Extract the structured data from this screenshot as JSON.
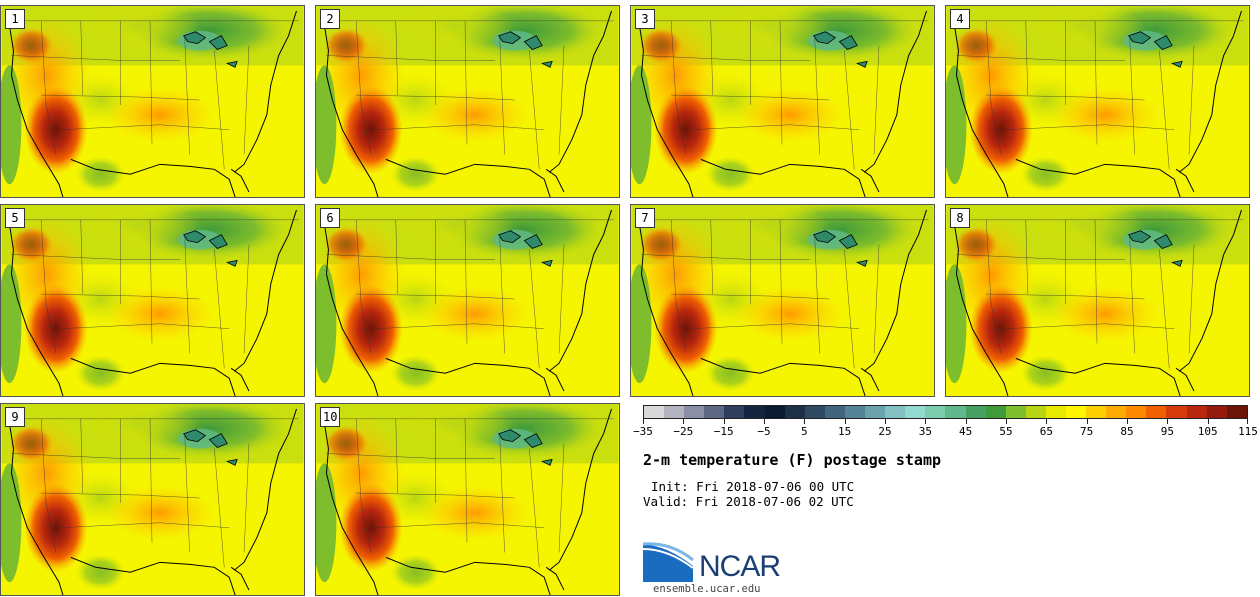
{
  "panels": [
    {
      "label": "1"
    },
    {
      "label": "2"
    },
    {
      "label": "3"
    },
    {
      "label": "4"
    },
    {
      "label": "5"
    },
    {
      "label": "6"
    },
    {
      "label": "7"
    },
    {
      "label": "8"
    },
    {
      "label": "9"
    },
    {
      "label": "10"
    }
  ],
  "colorbar": {
    "colors": [
      "#d8d8d8",
      "#b4b4c0",
      "#8a8fa6",
      "#5d6683",
      "#2f3d5e",
      "#142340",
      "#0a1a2f",
      "#1c3048",
      "#2e4a62",
      "#40657c",
      "#558396",
      "#6ba3ad",
      "#82c0c2",
      "#92d9ce",
      "#7ccdb0",
      "#5fb98c",
      "#45a062",
      "#3f9a3a",
      "#7ebd2b",
      "#b8d614",
      "#e5ea00",
      "#fff500",
      "#ffd000",
      "#ffaa00",
      "#ff8a00",
      "#f06000",
      "#d63a0c",
      "#b8260e",
      "#951a0e",
      "#6b1408"
    ],
    "tick_labels": [
      "−35",
      "−25",
      "−15",
      "−5",
      "5",
      "15",
      "25",
      "35",
      "45",
      "55",
      "65",
      "75",
      "85",
      "95",
      "105",
      "115"
    ]
  },
  "title": "2-m temperature (F) postage stamp",
  "init": "Init: Fri 2018-07-06 00 UTC",
  "valid": "Valid: Fri 2018-07-06 02 UTC",
  "logo_text": "NCAR",
  "site": "ensemble.ucar.edu"
}
